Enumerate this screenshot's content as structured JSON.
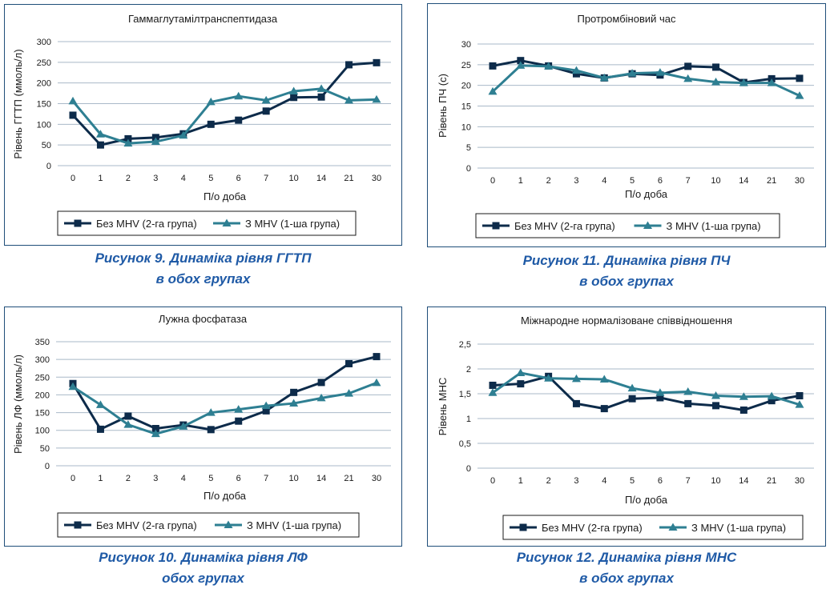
{
  "colors": {
    "series1": "#0d2b4a",
    "series2": "#2e7f92",
    "grid": "#a9b9c8",
    "frame": "#1f4e79",
    "caption": "#1f5aa6"
  },
  "chart_data": [
    {
      "type": "line",
      "title": "Гаммаглутамілтранспептидаза",
      "xlabel": "П/о доба",
      "ylabel": "Рівень ГГТП (ммоль/л)",
      "categories": [
        "0",
        "1",
        "2",
        "3",
        "4",
        "5",
        "6",
        "7",
        "10",
        "14",
        "21",
        "30"
      ],
      "ylim": [
        0,
        300
      ],
      "yticks": [
        "0",
        "50",
        "100",
        "150",
        "200",
        "250",
        "300"
      ],
      "grid": true,
      "legend": "bottom",
      "series": [
        {
          "name": "Без МНV (2-га група)",
          "values": [
            122,
            50,
            65,
            68,
            77,
            100,
            110,
            132,
            165,
            166,
            244,
            249
          ]
        },
        {
          "name": "З МНV (1-ша група)",
          "values": [
            156,
            76,
            54,
            58,
            73,
            154,
            168,
            158,
            180,
            186,
            158,
            160
          ]
        }
      ],
      "caption": [
        "Рисунок 9. Динаміка рівня ГГТП",
        "в обох групах"
      ]
    },
    {
      "type": "line",
      "title": "Протромбіновий час",
      "xlabel": "П/о доба",
      "ylabel": "Рівень ПЧ (с)",
      "categories": [
        "0",
        "1",
        "2",
        "3",
        "4",
        "5",
        "6",
        "7",
        "10",
        "14",
        "21",
        "30"
      ],
      "ylim": [
        0,
        30
      ],
      "yticks": [
        "0",
        "5",
        "10",
        "15",
        "20",
        "25",
        "30"
      ],
      "grid": true,
      "legend": "bottom",
      "series": [
        {
          "name": "Без МНV (2-га група)",
          "values": [
            24.7,
            26.0,
            24.7,
            22.8,
            21.8,
            22.8,
            22.5,
            24.6,
            24.4,
            20.7,
            21.6,
            21.7
          ]
        },
        {
          "name": "З МНV (1-ша група)",
          "values": [
            18.5,
            24.8,
            24.6,
            23.6,
            21.8,
            22.9,
            23.1,
            21.6,
            20.8,
            20.6,
            20.6,
            17.5
          ]
        }
      ],
      "caption": [
        "Рисунок 11. Динаміка рівня ПЧ",
        "в обох групах"
      ]
    },
    {
      "type": "line",
      "title": "Лужна фосфатаза",
      "xlabel": "П/о доба",
      "ylabel": "Рівень ЛФ (ммоль/л)",
      "categories": [
        "0",
        "1",
        "2",
        "3",
        "4",
        "5",
        "6",
        "7",
        "10",
        "14",
        "21",
        "30"
      ],
      "ylim": [
        0,
        350
      ],
      "yticks": [
        "0",
        "50",
        "100",
        "150",
        "200",
        "250",
        "300",
        "350"
      ],
      "grid": true,
      "legend": "bottom",
      "series": [
        {
          "name": "Без МНV (2-га група)",
          "values": [
            232,
            103,
            140,
            105,
            115,
            102,
            126,
            155,
            207,
            235,
            288,
            308
          ]
        },
        {
          "name": "З МНV (1-ша група)",
          "values": [
            223,
            172,
            116,
            90,
            111,
            150,
            159,
            169,
            176,
            191,
            204,
            234
          ]
        }
      ],
      "caption": [
        "Рисунок 10. Динаміка рівня ЛФ",
        "обох групах"
      ]
    },
    {
      "type": "line",
      "title": "Міжнародне нормалізоване співвідношення",
      "xlabel": "П/о доба",
      "ylabel": "Рівень МНС",
      "categories": [
        "0",
        "1",
        "2",
        "3",
        "4",
        "5",
        "6",
        "7",
        "10",
        "14",
        "21",
        "30"
      ],
      "ylim": [
        0,
        2.5
      ],
      "yticks": [
        "0",
        "0,5",
        "1",
        "1,5",
        "2",
        "2,5"
      ],
      "grid": true,
      "legend": "bottom",
      "series": [
        {
          "name": "Без МНV (2-га група)",
          "values": [
            1.67,
            1.7,
            1.85,
            1.3,
            1.2,
            1.4,
            1.42,
            1.3,
            1.26,
            1.17,
            1.36,
            1.46
          ]
        },
        {
          "name": "З МНV (1-ша група)",
          "values": [
            1.52,
            1.92,
            1.81,
            1.8,
            1.79,
            1.61,
            1.52,
            1.54,
            1.46,
            1.44,
            1.45,
            1.28
          ]
        }
      ],
      "caption": [
        "Рисунок 12. Динаміка рівня МНС",
        "в обох групах"
      ]
    }
  ]
}
